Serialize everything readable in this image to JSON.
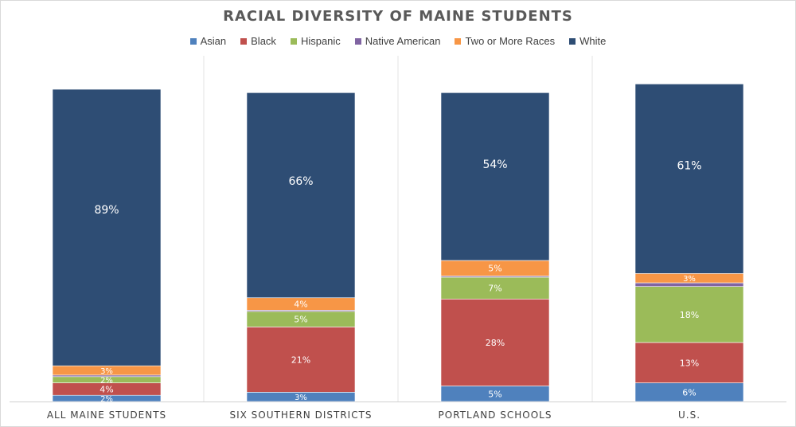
{
  "chart_data": {
    "type": "bar",
    "stacked": true,
    "title": "RACIAL DIVERSITY OF MAINE STUDENTS",
    "xlabel": "",
    "ylabel": "",
    "ylim": [
      0,
      100
    ],
    "grid": false,
    "legend_position": "top",
    "categories": [
      "ALL MAINE STUDENTS",
      "SIX SOUTHERN DISTRICTS",
      "PORTLAND SCHOOLS",
      "U.S."
    ],
    "series": [
      {
        "name": "Asian",
        "color": "#4f81bd",
        "values": [
          2,
          3,
          5,
          6
        ],
        "labels": [
          "2%",
          "3%",
          "5%",
          "6%"
        ]
      },
      {
        "name": "Black",
        "color": "#c0504d",
        "values": [
          4,
          21,
          28,
          13
        ],
        "labels": [
          "4%",
          "21%",
          "28%",
          "13%"
        ]
      },
      {
        "name": "Hispanic",
        "color": "#9bbb59",
        "values": [
          2,
          5,
          7,
          18
        ],
        "labels": [
          "2%",
          "5%",
          "7%",
          "18%"
        ]
      },
      {
        "name": "Native American",
        "color": "#8064a2",
        "values": [
          0.5,
          0.4,
          0.4,
          1.2
        ],
        "labels": [
          "",
          "",
          "",
          ""
        ]
      },
      {
        "name": "Two or More Races",
        "color": "#f79646",
        "values": [
          3,
          4,
          5,
          3
        ],
        "labels": [
          "3%",
          "4%",
          "5%",
          "3%"
        ]
      },
      {
        "name": "White",
        "color": "#2e4d74",
        "values": [
          89,
          66,
          54,
          61
        ],
        "labels": [
          "89%",
          "66%",
          "54%",
          "61%"
        ]
      }
    ]
  }
}
